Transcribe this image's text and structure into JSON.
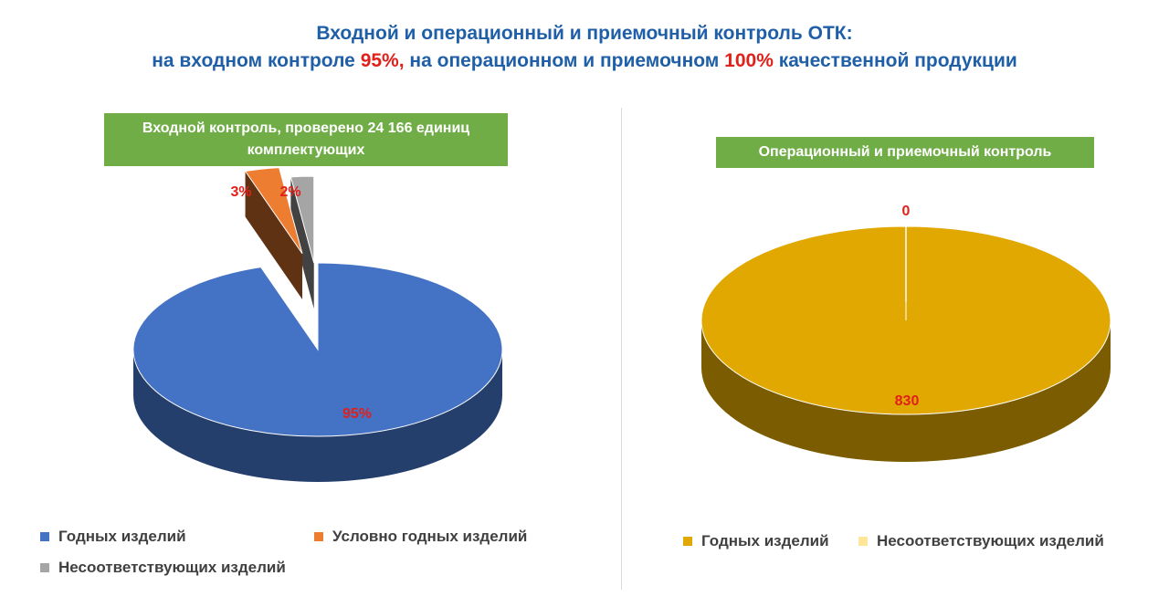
{
  "title": {
    "line1": "Входной и операционный и приемочный контроль ОТК:",
    "line2_a": "на входном контроле ",
    "line2_b": "95%,",
    "line2_c": " на операционном и приемочном ",
    "line2_d": "100%",
    "line2_e": " качественной продукции"
  },
  "colors": {
    "title": "#1f5fa8",
    "highlight": "#e0201a",
    "banner": "#70ad47",
    "good": "#4472c4",
    "conditional": "#ed7d31",
    "nonconforming": "#a5a5a5",
    "good_op": "#e0a800",
    "nonconforming_op": "#ffe699"
  },
  "chart_data": [
    {
      "type": "pie",
      "title": "Входной контроль, проверено 24 166 единиц комплектующих",
      "slices": [
        {
          "name": "Годных изделий",
          "value": 95,
          "label": "95%",
          "color": "#4472c4"
        },
        {
          "name": "Условно годных изделий",
          "value": 3,
          "label": "3%",
          "color": "#ed7d31"
        },
        {
          "name": "Несоответствующих изделий",
          "value": 2,
          "label": "2%",
          "color": "#a5a5a5"
        }
      ],
      "legend": [
        "Годных изделий",
        "Условно годных изделий",
        "Несоответствующих изделий"
      ],
      "legend_position": "bottom"
    },
    {
      "type": "pie",
      "title": "Операционный и приемочный контроль",
      "slices": [
        {
          "name": "Годных изделий",
          "value": 830,
          "label": "830",
          "color": "#e0a800"
        },
        {
          "name": "Несоответствующих изделий",
          "value": 0,
          "label": "0",
          "color": "#ffe699"
        }
      ],
      "legend": [
        "Годных изделий",
        "Несоответствующих изделий"
      ],
      "legend_position": "bottom"
    }
  ]
}
